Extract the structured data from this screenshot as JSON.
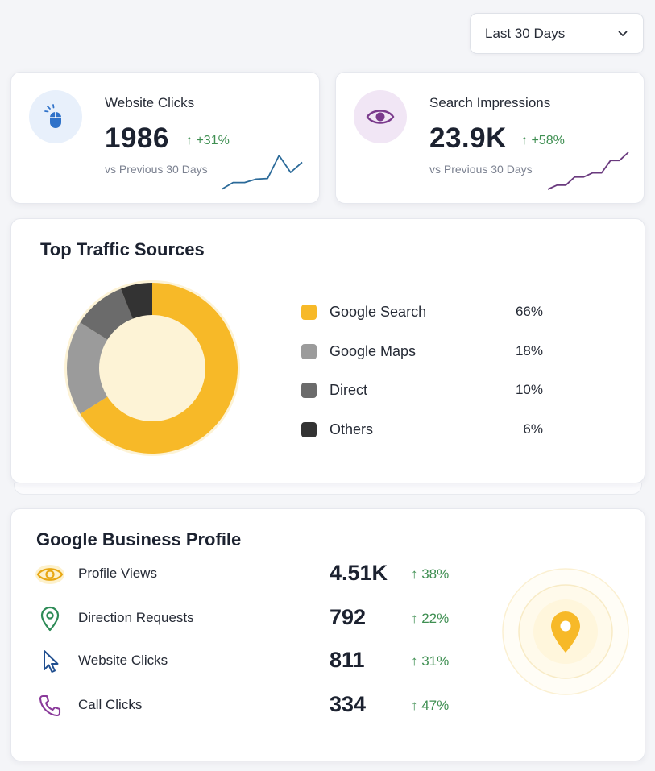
{
  "range_select": {
    "label": "Last 30 Days",
    "icon": "chevron-down-icon"
  },
  "kpis": [
    {
      "title": "Website Clicks",
      "value": "1986",
      "change": "↑ +31%",
      "subtitle": "vs Previous 30 Days",
      "icon": "mouse-icon",
      "accent": "#2f72c9",
      "sparkline": [
        3,
        4,
        4,
        4.5,
        4.6,
        8,
        5.5,
        7
      ]
    },
    {
      "title": "Search Impressions",
      "value": "23.9K",
      "change": "↑ +58%",
      "subtitle": "vs Previous 30 Days",
      "icon": "eye-icon",
      "accent": "#7a3a8c",
      "sparkline": [
        1,
        2,
        2,
        4,
        4,
        5,
        5,
        8,
        8,
        10
      ]
    }
  ],
  "traffic": {
    "title": "Top Traffic Sources",
    "sources": [
      {
        "name": "Google Search",
        "percent": 66,
        "label": "66%",
        "color": "#f7b928"
      },
      {
        "name": "Google Maps",
        "percent": 18,
        "label": "18%",
        "color": "#9b9b9b"
      },
      {
        "name": "Direct",
        "percent": 10,
        "label": "10%",
        "color": "#6b6b6b"
      },
      {
        "name": "Others",
        "percent": 6,
        "label": "6%",
        "color": "#333333"
      }
    ]
  },
  "profile": {
    "title": "Google Business Profile",
    "metrics": [
      {
        "label": "Profile Views",
        "value": "4.51K",
        "change": "↑ 38%",
        "icon": "eye-icon"
      },
      {
        "label": "Direction Requests",
        "value": "792",
        "change": "↑ 22%",
        "icon": "location-pin-icon"
      },
      {
        "label": "Website Clicks",
        "value": "811",
        "change": "↑ 31%",
        "icon": "cursor-icon"
      },
      {
        "label": "Call Clicks",
        "value": "334",
        "change": "↑ 47%",
        "icon": "phone-icon"
      }
    ],
    "hero_icon": "map-pin-icon",
    "accent": "#f7b928"
  }
}
